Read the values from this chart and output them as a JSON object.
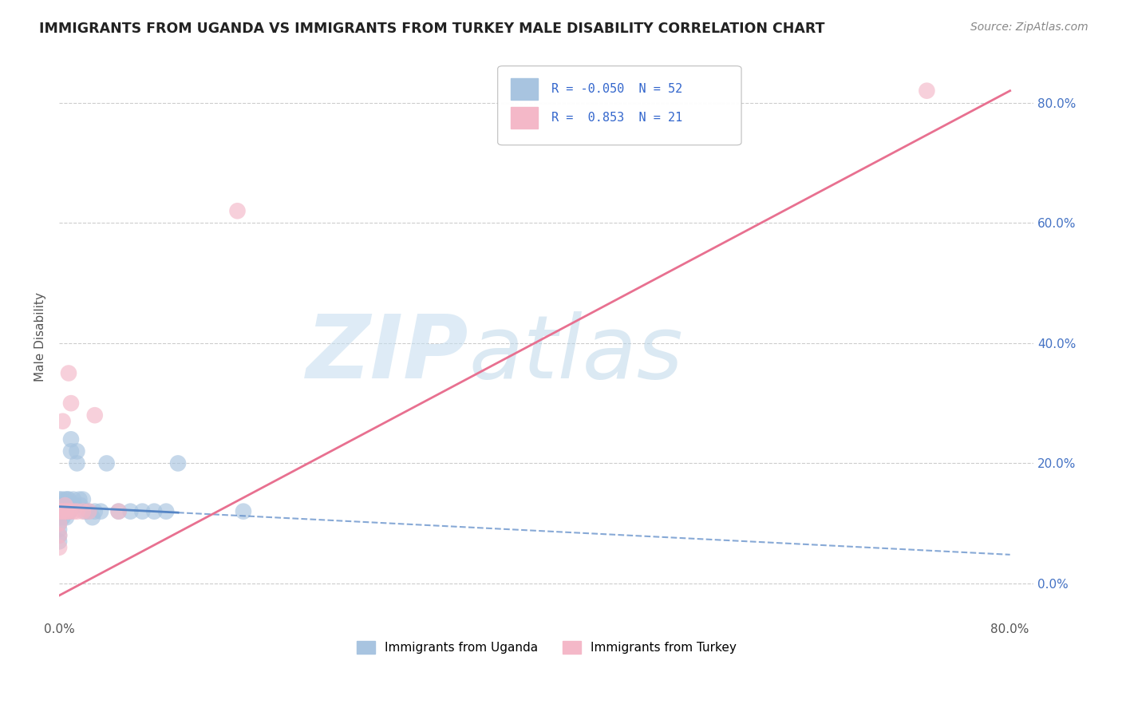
{
  "title": "IMMIGRANTS FROM UGANDA VS IMMIGRANTS FROM TURKEY MALE DISABILITY CORRELATION CHART",
  "source": "Source: ZipAtlas.com",
  "ylabel": "Male Disability",
  "xlim": [
    0.0,
    0.82
  ],
  "ylim": [
    -0.06,
    0.88
  ],
  "yticks": [
    0.0,
    0.2,
    0.4,
    0.6,
    0.8
  ],
  "xticks": [
    0.0,
    0.1,
    0.2,
    0.3,
    0.4,
    0.5,
    0.6,
    0.7,
    0.8
  ],
  "ytick_labels_right": [
    "0.0%",
    "20.0%",
    "40.0%",
    "60.0%",
    "80.0%"
  ],
  "xtick_labels": [
    "0.0%",
    "",
    "",
    "",
    "",
    "",
    "",
    "",
    "80.0%"
  ],
  "legend_R_uganda": "-0.050",
  "legend_N_uganda": "52",
  "legend_R_turkey": "0.853",
  "legend_N_turkey": "21",
  "color_uganda": "#a8c4e0",
  "color_turkey": "#f4b8c8",
  "line_color_uganda": "#5585c5",
  "line_color_turkey": "#e87090",
  "background_color": "#ffffff",
  "uganda_x": [
    0.0,
    0.0,
    0.0,
    0.0,
    0.0,
    0.0,
    0.0,
    0.0,
    0.0,
    0.001,
    0.001,
    0.002,
    0.002,
    0.003,
    0.003,
    0.003,
    0.004,
    0.004,
    0.005,
    0.005,
    0.005,
    0.006,
    0.006,
    0.007,
    0.007,
    0.008,
    0.008,
    0.008,
    0.009,
    0.009,
    0.01,
    0.01,
    0.012,
    0.013,
    0.015,
    0.015,
    0.017,
    0.018,
    0.02,
    0.022,
    0.025,
    0.028,
    0.03,
    0.035,
    0.04,
    0.05,
    0.06,
    0.07,
    0.08,
    0.09,
    0.1,
    0.155
  ],
  "uganda_y": [
    0.12,
    0.13,
    0.14,
    0.12,
    0.11,
    0.1,
    0.09,
    0.08,
    0.07,
    0.13,
    0.12,
    0.14,
    0.12,
    0.13,
    0.12,
    0.11,
    0.13,
    0.12,
    0.14,
    0.13,
    0.12,
    0.13,
    0.11,
    0.14,
    0.12,
    0.14,
    0.13,
    0.12,
    0.13,
    0.12,
    0.24,
    0.22,
    0.14,
    0.13,
    0.22,
    0.2,
    0.14,
    0.13,
    0.14,
    0.12,
    0.12,
    0.11,
    0.12,
    0.12,
    0.2,
    0.12,
    0.12,
    0.12,
    0.12,
    0.12,
    0.2,
    0.12
  ],
  "turkey_x": [
    0.0,
    0.0,
    0.0,
    0.0,
    0.002,
    0.003,
    0.004,
    0.005,
    0.006,
    0.007,
    0.008,
    0.009,
    0.01,
    0.012,
    0.015,
    0.02,
    0.025,
    0.03,
    0.05,
    0.15,
    0.73
  ],
  "turkey_y": [
    0.12,
    0.1,
    0.08,
    0.06,
    0.12,
    0.27,
    0.12,
    0.13,
    0.12,
    0.12,
    0.35,
    0.12,
    0.3,
    0.12,
    0.12,
    0.12,
    0.12,
    0.28,
    0.12,
    0.62,
    0.82
  ],
  "watermark_zip_color": "#c8dff0",
  "watermark_atlas_color": "#b8d4e8",
  "grid_color": "#cccccc"
}
